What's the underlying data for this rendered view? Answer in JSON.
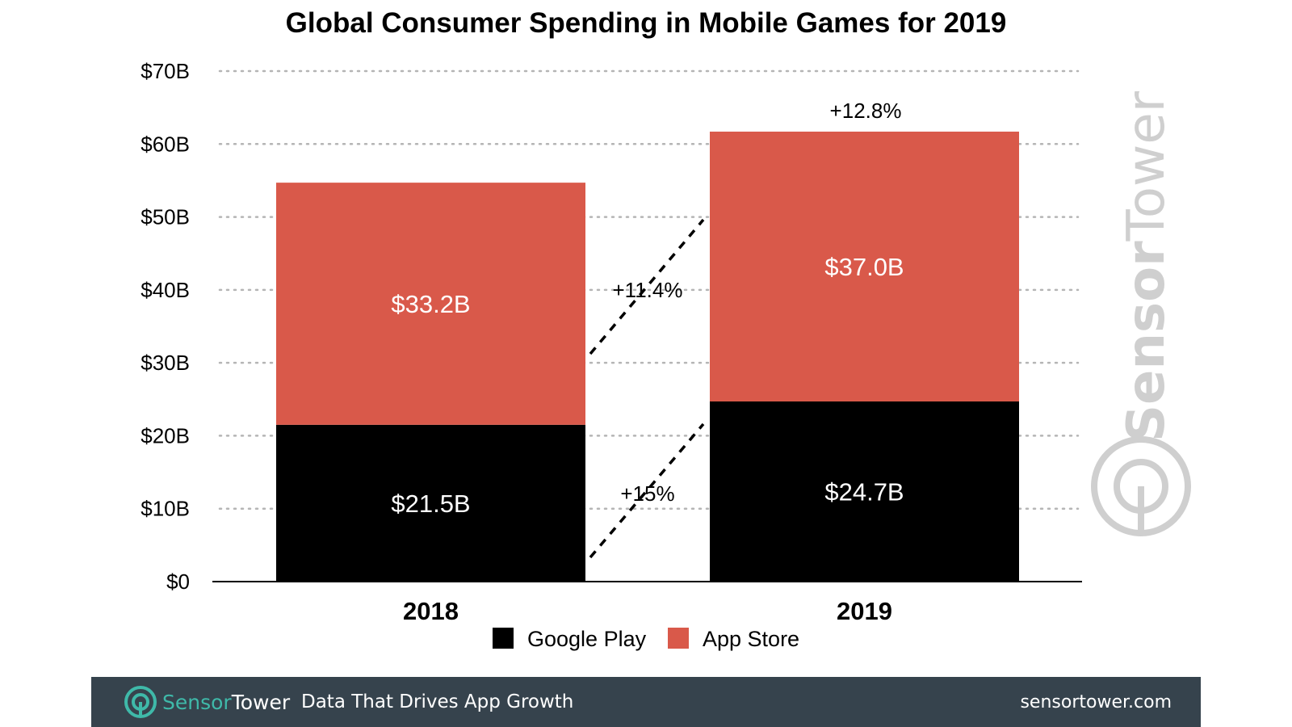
{
  "colors": {
    "google_play": "#000000",
    "app_store": "#d9594a",
    "grid": "#b5b5b5",
    "watermark": "#cfcfcf",
    "footer_bg": "#36434d",
    "footer_brand": "#3fb9a9"
  },
  "chart_data": {
    "type": "bar",
    "stacked": true,
    "title": "Global Consumer Spending in Mobile Games for 2019",
    "categories": [
      "2018",
      "2019"
    ],
    "series": [
      {
        "name": "Google Play",
        "values": [
          21.5,
          24.7
        ],
        "labels": [
          "$21.5B",
          "$24.7B"
        ]
      },
      {
        "name": "App Store",
        "values": [
          33.2,
          37.0
        ],
        "labels": [
          "$33.2B",
          "$37.0B"
        ]
      }
    ],
    "ylim": [
      0,
      70
    ],
    "yticks": [
      0,
      10,
      20,
      30,
      40,
      50,
      60,
      70
    ],
    "ytick_labels": [
      "$0",
      "$10B",
      "$20B",
      "$30B",
      "$40B",
      "$50B",
      "$60B",
      "$70B"
    ],
    "grid": true,
    "legend_position": "bottom-center",
    "annotations": {
      "total_growth": "+12.8%",
      "app_store_growth": "+11.4%",
      "google_play_growth": "+15%"
    }
  },
  "watermark": {
    "brand_prefix": "Sensor",
    "brand_suffix": "Tower"
  },
  "footer": {
    "brand_prefix": "Sensor",
    "brand_suffix": "Tower",
    "tagline": "Data That Drives App Growth",
    "site": "sensortower.com"
  }
}
